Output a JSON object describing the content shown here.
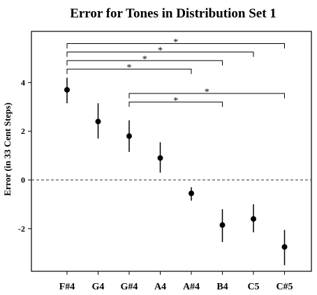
{
  "chart_data": {
    "type": "scatter",
    "title": "Error for Tones in Distribution Set 1",
    "xlabel": "",
    "ylabel": "Error (in 33 Cent Steps)",
    "categories": [
      "F#4",
      "G4",
      "G#4",
      "A4",
      "A#4",
      "B4",
      "C5",
      "C#5"
    ],
    "values": [
      3.7,
      2.4,
      1.8,
      0.9,
      -0.55,
      -1.85,
      -1.6,
      -2.75
    ],
    "error_low": [
      3.15,
      1.7,
      1.15,
      0.3,
      -0.85,
      -2.55,
      -2.15,
      -3.5
    ],
    "error_high": [
      4.2,
      3.15,
      2.45,
      1.55,
      -0.3,
      -1.2,
      -1.0,
      -2.05
    ],
    "ylim": [
      -3.75,
      6.1
    ],
    "yticks": [
      -2,
      0,
      2,
      4
    ],
    "ytick_labels": [
      "-2",
      "0",
      "2",
      "4"
    ],
    "reference_line": 0,
    "significance": [
      {
        "from": "F#4",
        "to": "C#5",
        "level": 5.6,
        "label": "*"
      },
      {
        "from": "F#4",
        "to": "C5",
        "level": 5.25,
        "label": "*"
      },
      {
        "from": "F#4",
        "to": "B4",
        "level": 4.9,
        "label": "*"
      },
      {
        "from": "F#4",
        "to": "A#4",
        "level": 4.55,
        "label": "*"
      },
      {
        "from": "G#4",
        "to": "C#5",
        "level": 3.55,
        "label": "*"
      },
      {
        "from": "G#4",
        "to": "B4",
        "level": 3.2,
        "label": "*"
      }
    ],
    "grid": false,
    "legend": "none"
  }
}
